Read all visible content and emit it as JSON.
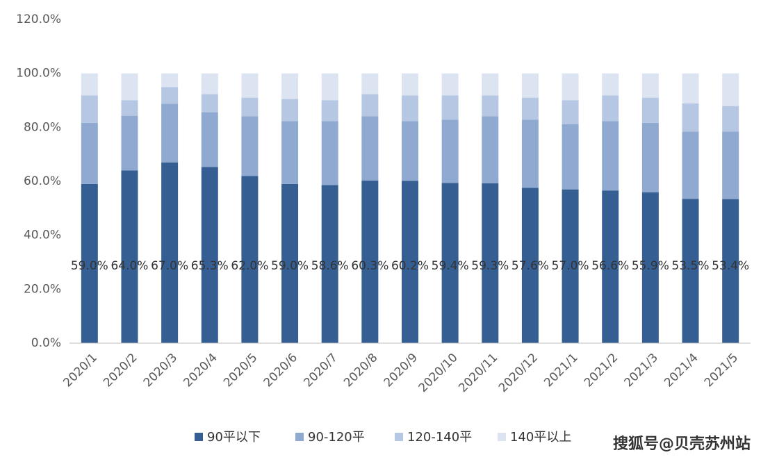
{
  "chart_data": {
    "type": "stacked_bar",
    "categories": [
      "2020/1",
      "2020/2",
      "2020/3",
      "2020/4",
      "2020/5",
      "2020/6",
      "2020/7",
      "2020/8",
      "2020/9",
      "2020/10",
      "2020/11",
      "2020/12",
      "2021/1",
      "2021/2",
      "2021/3",
      "2021/4",
      "2021/5"
    ],
    "series": [
      {
        "name": "90平以下",
        "color": "#355e93",
        "values": [
          59.0,
          64.0,
          67.0,
          65.3,
          62.0,
          59.0,
          58.6,
          60.3,
          60.2,
          59.4,
          59.3,
          57.6,
          57.0,
          56.6,
          55.9,
          53.5,
          53.4
        ],
        "value_labels": [
          "59.0%",
          "64.0%",
          "67.0%",
          "65.3%",
          "62.0%",
          "59.0%",
          "58.6%",
          "60.3%",
          "60.2%",
          "59.4%",
          "59.3%",
          "57.6%",
          "57.0%",
          "56.6%",
          "55.9%",
          "53.5%",
          "53.4%"
        ]
      },
      {
        "name": "90-120平",
        "color": "#8fa9d1",
        "values": [
          22.7,
          20.3,
          21.7,
          20.3,
          22.1,
          23.3,
          23.7,
          23.8,
          22.1,
          23.4,
          24.8,
          25.2,
          24.2,
          25.7,
          25.8,
          24.9,
          25.0
        ]
      },
      {
        "name": "120-140平",
        "color": "#b5c7e3",
        "values": [
          10.1,
          5.7,
          6.2,
          6.7,
          6.9,
          8.2,
          7.7,
          8.2,
          9.5,
          9.0,
          7.7,
          8.2,
          8.8,
          9.5,
          9.3,
          10.5,
          9.5
        ]
      },
      {
        "name": "140平以上",
        "color": "#dce4f2",
        "values": [
          8.2,
          10.0,
          5.1,
          7.7,
          9.0,
          9.5,
          10.0,
          7.7,
          8.2,
          8.2,
          8.2,
          9.0,
          10.0,
          8.2,
          9.0,
          11.1,
          12.1
        ]
      }
    ],
    "ylim": [
      0,
      120
    ],
    "yticks": [
      {
        "value": 0,
        "label": "0.0%"
      },
      {
        "value": 20,
        "label": "20.0%"
      },
      {
        "value": 40,
        "label": "40.0%"
      },
      {
        "value": 60,
        "label": "60.0%"
      },
      {
        "value": 80,
        "label": "80.0%"
      },
      {
        "value": 100,
        "label": "100.0%"
      },
      {
        "value": 120,
        "label": "120.0%"
      }
    ],
    "grid": false,
    "legend": "bottom",
    "watermark": "搜狐号@贝壳苏州站"
  }
}
